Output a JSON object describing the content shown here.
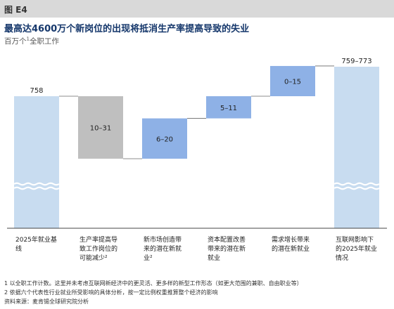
{
  "figure_label": "图 E4",
  "title": "最高达4600万个新岗位的出现将抵消生产率提高导致的失业",
  "subtitle": "百万个",
  "subtitle_sup": "1",
  "subtitle_rest": "全职工作",
  "chart_data": {
    "type": "waterfall",
    "categories": [
      [
        "2025年就业基",
        "线"
      ],
      [
        "生产率提高导",
        "致工作岗位的",
        "可能减少²"
      ],
      [
        "新市场创造带",
        "来的潜在新就",
        "业²"
      ],
      [
        "资本配置改善",
        "带来的潜在新",
        "就业"
      ],
      [
        "需求增长带来",
        "的潜在新就业"
      ],
      [
        "互联网影响下",
        "的2025年就业",
        "情况"
      ]
    ],
    "bars": [
      {
        "label": "758",
        "kind": "total",
        "value": 758,
        "color": "#c8dcf0"
      },
      {
        "label": "10–31",
        "kind": "decrease",
        "low": 10,
        "high": 31,
        "color": "#bfbfbf"
      },
      {
        "label": "6–20",
        "kind": "increase",
        "low": 6,
        "high": 20,
        "color": "#8eb1e6"
      },
      {
        "label": "5–11",
        "kind": "increase",
        "low": 5,
        "high": 11,
        "color": "#8eb1e6"
      },
      {
        "label": "0–15",
        "kind": "increase",
        "low": 0,
        "high": 15,
        "color": "#8eb1e6"
      },
      {
        "label": "759–773",
        "kind": "total",
        "low": 759,
        "high": 773,
        "color": "#c8dcf0"
      }
    ]
  },
  "footnotes": [
    "1 以全职工作计数。这里并未考虑互联网新经济中的更灵活、更多样的新型工作形态（如更大范围的兼职、自由职业等）",
    "2 依据六个代表性行业就业所受影响的具体分析，按一定比例权重推算整个经济的影响",
    "资料来源：麦肯锡全球研究院分析"
  ]
}
